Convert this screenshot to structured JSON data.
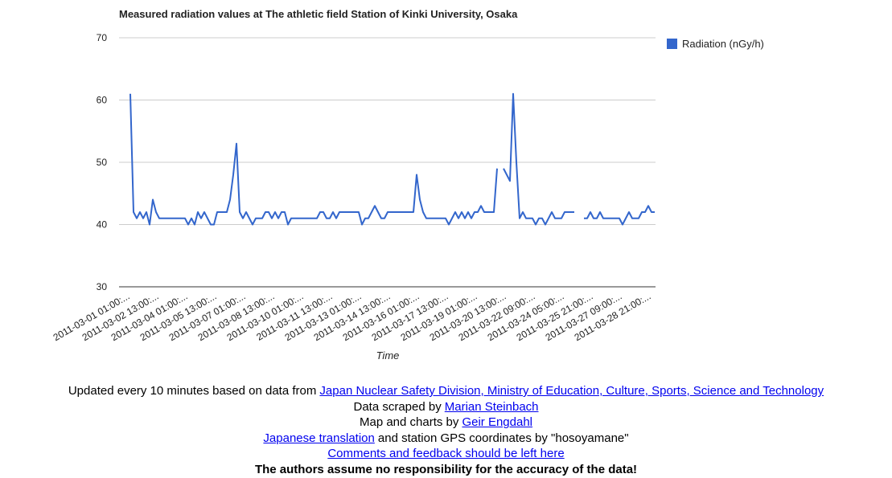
{
  "chart_data": {
    "type": "line",
    "title": "Measured radiation values at The athletic field Station of Kinki University, Osaka",
    "x_label": "Time",
    "categories": [
      "2011-03-01 01:00:...",
      null,
      null,
      null,
      null,
      null,
      null,
      null,
      null,
      "2011-03-02 13:00:...",
      null,
      null,
      null,
      null,
      null,
      null,
      null,
      null,
      "2011-03-04 01:00:...",
      null,
      null,
      null,
      null,
      null,
      null,
      null,
      null,
      "2011-03-05 13:00:...",
      null,
      null,
      null,
      null,
      null,
      null,
      null,
      null,
      "2011-03-07 01:00:...",
      null,
      null,
      null,
      null,
      null,
      null,
      null,
      null,
      "2011-03-08 13:00:...",
      null,
      null,
      null,
      null,
      null,
      null,
      null,
      null,
      "2011-03-10 01:00:...",
      null,
      null,
      null,
      null,
      null,
      null,
      null,
      null,
      "2011-03-11 13:00:...",
      null,
      null,
      null,
      null,
      null,
      null,
      null,
      null,
      "2011-03-13 01:00:...",
      null,
      null,
      null,
      null,
      null,
      null,
      null,
      null,
      "2011-03-14 13:00:...",
      null,
      null,
      null,
      null,
      null,
      null,
      null,
      null,
      "2011-03-16 01:00:...",
      null,
      null,
      null,
      null,
      null,
      null,
      null,
      null,
      "2011-03-17 13:00:...",
      null,
      null,
      null,
      null,
      null,
      null,
      null,
      null,
      "2011-03-19 01:00:...",
      null,
      null,
      null,
      null,
      null,
      null,
      null,
      null,
      "2011-03-20 13:00:...",
      null,
      null,
      null,
      null,
      null,
      null,
      null,
      null,
      "2011-03-22 09:00:...",
      null,
      null,
      null,
      null,
      null,
      null,
      null,
      null,
      "2011-03-24 05:00:...",
      null,
      null,
      null,
      null,
      null,
      null,
      null,
      null,
      "2011-03-25 21:00:...",
      null,
      null,
      null,
      null,
      null,
      null,
      null,
      null,
      "2011-03-27 09:00:...",
      null,
      null,
      null,
      null,
      null,
      null,
      null,
      null,
      "2011-03-28 21:00:...",
      null
    ],
    "series": [
      {
        "name": "Radiation (nGy/h)",
        "color": "#3366cc",
        "values": [
          61,
          42,
          41,
          42,
          41,
          42,
          40,
          44,
          42,
          41,
          41,
          41,
          41,
          41,
          41,
          41,
          41,
          41,
          40,
          41,
          40,
          42,
          41,
          42,
          41,
          40,
          40,
          42,
          42,
          42,
          42,
          44,
          48,
          53,
          42,
          41,
          42,
          41,
          40,
          41,
          41,
          41,
          42,
          42,
          41,
          42,
          41,
          42,
          42,
          40,
          41,
          41,
          41,
          41,
          41,
          41,
          41,
          41,
          41,
          42,
          42,
          41,
          41,
          42,
          41,
          42,
          42,
          42,
          42,
          42,
          42,
          42,
          40,
          41,
          41,
          42,
          43,
          42,
          41,
          41,
          42,
          42,
          42,
          42,
          42,
          42,
          42,
          42,
          42,
          48,
          44,
          42,
          41,
          41,
          41,
          41,
          41,
          41,
          41,
          40,
          41,
          42,
          41,
          42,
          41,
          42,
          41,
          42,
          42,
          43,
          42,
          42,
          42,
          42,
          49,
          null,
          49,
          48,
          47,
          61,
          50,
          41,
          42,
          41,
          41,
          41,
          40,
          41,
          41,
          40,
          41,
          42,
          41,
          41,
          41,
          42,
          42,
          42,
          42,
          null,
          null,
          41,
          41,
          42,
          41,
          41,
          42,
          41,
          41,
          41,
          41,
          41,
          41,
          40,
          41,
          42,
          41,
          41,
          41,
          42,
          42,
          43,
          42,
          42
        ]
      }
    ],
    "ylim": [
      30,
      70
    ],
    "yticks": [
      30,
      40,
      50,
      60,
      70
    ],
    "grid": true,
    "legend": "right"
  },
  "footer": {
    "line1": {
      "text": "Updated every 10 minutes based on data from",
      "link": "Japan Nuclear Safety Division, Ministry of Education, Culture, Sports, Science and Technology"
    },
    "line2": {
      "text": "Data scraped by",
      "link": "Marian Steinbach"
    },
    "line3": {
      "text": "Map and charts by",
      "link": "Geir Engdahl"
    },
    "line4": {
      "link": "Japanese translation",
      "text": "and station GPS coordinates by \"hosoyamane\""
    },
    "line5": {
      "link": "Comments and feedback should be left here"
    },
    "line6": {
      "text": "The authors assume no responsibility for the accuracy of the data!"
    }
  }
}
